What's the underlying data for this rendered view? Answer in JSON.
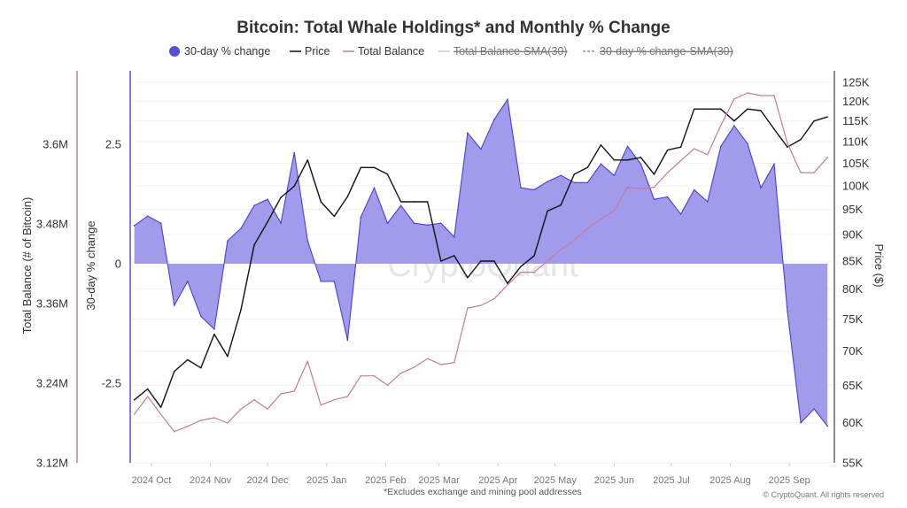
{
  "chart_data": {
    "type": "area",
    "title": "Bitcoin: Total Whale Holdings* and Monthly % Change",
    "footnote": "*Excludes exchange and mining pool addresses",
    "copyright": "© CryptoQuant. All rights reserved",
    "watermark": "CryptoQuant",
    "legend": {
      "position": "top",
      "items": [
        {
          "label": "30-day % change",
          "marker": "dot",
          "color": "#5a4fd8",
          "active": true
        },
        {
          "label": "Price",
          "marker": "line",
          "color": "#111111",
          "active": true
        },
        {
          "label": "Total Balance",
          "marker": "line",
          "color": "#c27ba0",
          "active": true
        },
        {
          "label": "Total Balance-SMA(30)",
          "marker": "line",
          "color": "#cccccc",
          "active": false
        },
        {
          "label": "30-day % change-SMA(30)",
          "marker": "dashed",
          "color": "#888888",
          "active": false
        }
      ]
    },
    "axes": {
      "balance": {
        "label": "Total Balance (# of Bitcoin)",
        "ticks": [
          "3.12M",
          "3.24M",
          "3.36M",
          "3.48M",
          "3.6M"
        ],
        "tick_values": [
          3.12,
          3.24,
          3.36,
          3.48,
          3.6
        ],
        "range": [
          3.12,
          3.693
        ],
        "unit": "M",
        "color": "#c27ba0"
      },
      "pct": {
        "label": "30-day % change",
        "ticks": [
          "-2.5",
          "0",
          "2.5"
        ],
        "tick_values": [
          -2.5,
          0,
          2.5
        ],
        "range": [
          -4.17,
          3.8
        ],
        "color": "#5a4fd8"
      },
      "price": {
        "label": "Price ($)",
        "scale": "log",
        "ticks": [
          "55K",
          "60K",
          "65K",
          "70K",
          "75K",
          "80K",
          "85K",
          "90K",
          "95K",
          "100K",
          "105K",
          "110K",
          "115K",
          "120K",
          "125K"
        ],
        "tick_values": [
          55000,
          60000,
          65000,
          70000,
          75000,
          80000,
          85000,
          90000,
          95000,
          100000,
          105000,
          110000,
          115000,
          120000,
          125000
        ],
        "range": [
          55000,
          125000
        ]
      },
      "x": {
        "ticks": [
          "2024 Oct",
          "2024 Nov",
          "2024 Dec",
          "2025 Jan",
          "2025 Feb",
          "2025 Mar",
          "2025 Apr",
          "2025 May",
          "2025 Jun",
          "2025 Jul",
          "2025 Aug",
          "2025 Sep"
        ],
        "tick_dates": [
          "2024-10-01",
          "2024-11-01",
          "2024-12-01",
          "2025-01-01",
          "2025-02-01",
          "2025-03-01",
          "2025-04-01",
          "2025-05-01",
          "2025-06-01",
          "2025-07-01",
          "2025-08-01",
          "2025-09-01"
        ],
        "range": [
          "2024-09-22",
          "2025-09-23"
        ]
      }
    },
    "grid": true,
    "x": [
      "2024-09-22",
      "2024-09-29",
      "2024-10-06",
      "2024-10-13",
      "2024-10-20",
      "2024-10-27",
      "2024-11-03",
      "2024-11-10",
      "2024-11-17",
      "2024-11-24",
      "2024-12-01",
      "2024-12-08",
      "2024-12-15",
      "2024-12-22",
      "2024-12-29",
      "2025-01-05",
      "2025-01-12",
      "2025-01-19",
      "2025-01-26",
      "2025-02-02",
      "2025-02-09",
      "2025-02-16",
      "2025-02-23",
      "2025-03-02",
      "2025-03-09",
      "2025-03-16",
      "2025-03-23",
      "2025-03-30",
      "2025-04-06",
      "2025-04-13",
      "2025-04-20",
      "2025-04-27",
      "2025-05-04",
      "2025-05-11",
      "2025-05-18",
      "2025-05-25",
      "2025-06-01",
      "2025-06-08",
      "2025-06-15",
      "2025-06-22",
      "2025-06-29",
      "2025-07-06",
      "2025-07-13",
      "2025-07-20",
      "2025-07-27",
      "2025-08-03",
      "2025-08-10",
      "2025-08-17",
      "2025-08-24",
      "2025-08-31",
      "2025-09-07",
      "2025-09-14",
      "2025-09-21"
    ],
    "series": [
      {
        "name": "30-day % change",
        "axis": "pct",
        "kind": "area",
        "values": [
          0.8,
          1.0,
          0.85,
          -0.87,
          -0.37,
          -1.1,
          -1.37,
          0.48,
          0.74,
          1.22,
          1.35,
          0.85,
          2.33,
          0.48,
          -0.37,
          -0.37,
          -1.6,
          0.98,
          1.59,
          0.85,
          1.22,
          0.85,
          0.81,
          0.85,
          0.56,
          2.74,
          2.4,
          3.02,
          3.44,
          1.59,
          1.55,
          1.72,
          1.85,
          1.7,
          1.7,
          2.09,
          1.85,
          2.46,
          2.09,
          1.35,
          1.4,
          1.04,
          1.55,
          1.3,
          2.46,
          2.89,
          2.52,
          1.59,
          2.09,
          -1.0,
          -3.33,
          -3.04,
          -3.4
        ]
      },
      {
        "name": "Price",
        "axis": "price",
        "kind": "line",
        "values": [
          63000,
          64500,
          62000,
          67000,
          68700,
          67500,
          72600,
          69200,
          76500,
          88000,
          92500,
          97500,
          99900,
          105700,
          96600,
          93600,
          97700,
          104000,
          104000,
          102500,
          96600,
          96600,
          96600,
          85000,
          86000,
          82000,
          85000,
          85000,
          81000,
          84000,
          86000,
          94700,
          95900,
          102500,
          104000,
          109200,
          105700,
          105700,
          106300,
          102500,
          108000,
          108700,
          118000,
          118000,
          118000,
          115000,
          118000,
          117600,
          113000,
          108700,
          110500,
          115000,
          116000
        ]
      },
      {
        "name": "Total Balance",
        "axis": "balance",
        "kind": "line",
        "values": [
          3.193,
          3.22,
          3.193,
          3.167,
          3.175,
          3.184,
          3.188,
          3.18,
          3.201,
          3.215,
          3.201,
          3.224,
          3.228,
          3.273,
          3.207,
          3.215,
          3.22,
          3.251,
          3.251,
          3.237,
          3.255,
          3.264,
          3.277,
          3.268,
          3.271,
          3.353,
          3.357,
          3.367,
          3.388,
          3.407,
          3.407,
          3.424,
          3.441,
          3.455,
          3.473,
          3.487,
          3.5,
          3.535,
          3.533,
          3.535,
          3.557,
          3.575,
          3.593,
          3.584,
          3.628,
          3.668,
          3.677,
          3.673,
          3.673,
          3.601,
          3.557,
          3.557,
          3.58
        ]
      }
    ]
  }
}
